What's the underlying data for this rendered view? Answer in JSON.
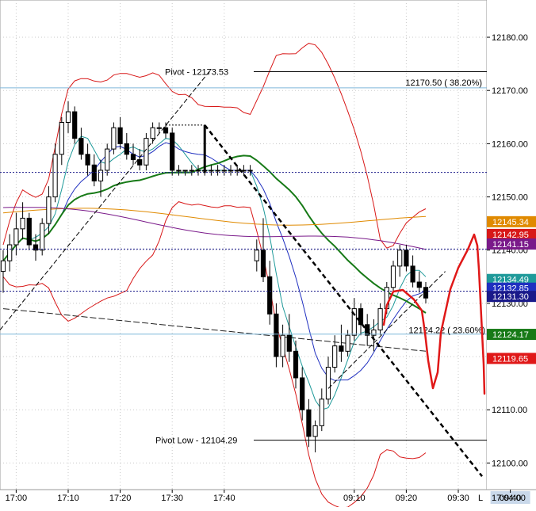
{
  "chart_data": {
    "type": "candlestick",
    "ylim": [
      12095,
      12187
    ],
    "y_ticks": [
      12100,
      12110,
      12120,
      12130,
      12140,
      12150,
      12160,
      12170,
      12180
    ],
    "y_tick_labels": [
      "12100.00",
      "12110.00",
      "12120.00",
      "12130.00",
      "12140.00",
      "12150.00",
      "12160.00",
      "12170.00",
      "12180.00"
    ],
    "x_tick_labels": [
      "17:00",
      "17:10",
      "17:20",
      "17:30",
      "17:40",
      "09:10",
      "09:20",
      "09:30",
      "09:40"
    ],
    "x_tick_bars": [
      2,
      10,
      18,
      26,
      34,
      54,
      62,
      70,
      78
    ],
    "x_end_label": "17:04:00",
    "x_end_marker": "L",
    "highlight_x_label": "09:40",
    "annotations": {
      "pivot_high": {
        "label": "Pivot - 12173.53",
        "value": 12173.53
      },
      "pivot_low": {
        "label": "Pivot Low - 12104.29",
        "value": 12104.29
      },
      "fib_382": {
        "label": "12170.50 ( 38.20%)",
        "value": 12170.5
      },
      "fib_236": {
        "label": "12124.22 ( 23.60%)",
        "value": 12124.22
      }
    },
    "price_badges": [
      {
        "label": "12145.34",
        "value": 12145.34,
        "color": "#e08a00"
      },
      {
        "label": "12142.95",
        "value": 12142.95,
        "color": "#d81818"
      },
      {
        "label": "12141.15",
        "value": 12141.15,
        "color": "#7a1a8a"
      },
      {
        "label": "12134.49",
        "value": 12134.49,
        "color": "#1f9a9a"
      },
      {
        "label": "12132.85",
        "value": 12132.85,
        "color": "#2030c0"
      },
      {
        "label": "12131.30",
        "value": 12131.3,
        "color": "#1a1a8a"
      },
      {
        "label": "12124.17",
        "value": 12124.17,
        "color": "#177a17"
      },
      {
        "label": "12119.65",
        "value": 12119.65,
        "color": "#e01818"
      }
    ],
    "candles": [
      [
        12136,
        12140,
        12132,
        12138
      ],
      [
        12138,
        12143,
        12136,
        12141
      ],
      [
        12141,
        12147,
        12139,
        12144
      ],
      [
        12144,
        12149,
        12142,
        12146
      ],
      [
        12146,
        12147,
        12140,
        12141
      ],
      [
        12141,
        12143,
        12138,
        12140
      ],
      [
        12140,
        12146,
        12139,
        12145
      ],
      [
        12145,
        12152,
        12143,
        12150
      ],
      [
        12150,
        12160,
        12149,
        12158
      ],
      [
        12158,
        12165,
        12156,
        12164
      ],
      [
        12164,
        12168,
        12162,
        12166
      ],
      [
        12166,
        12167,
        12160,
        12161
      ],
      [
        12161,
        12163,
        12157,
        12158
      ],
      [
        12158,
        12160,
        12154,
        12156
      ],
      [
        12156,
        12158,
        12152,
        12153
      ],
      [
        12153,
        12157,
        12150,
        12155
      ],
      [
        12155,
        12160,
        12154,
        12159
      ],
      [
        12159,
        12164,
        12158,
        12163
      ],
      [
        12163,
        12165,
        12159,
        12160
      ],
      [
        12160,
        12162,
        12157,
        12158
      ],
      [
        12158,
        12160,
        12156,
        12157
      ],
      [
        12157,
        12159,
        12155,
        12156
      ],
      [
        12156,
        12162,
        12155,
        12161
      ],
      [
        12161,
        12164,
        12160,
        12163
      ],
      [
        12163,
        12164,
        12162,
        12163
      ],
      [
        12163,
        12164,
        12161,
        12162
      ],
      [
        12162,
        12163,
        12154,
        12155
      ],
      [
        12155,
        12156,
        12154,
        12155
      ],
      [
        12155,
        12155,
        12154,
        12155
      ],
      [
        12155,
        12156,
        12154,
        12155
      ],
      [
        12155,
        12156,
        12154,
        12155
      ],
      [
        12155,
        12156,
        12154,
        12155
      ],
      [
        12155,
        12156,
        12154,
        12155
      ],
      [
        12155,
        12156,
        12154,
        12155
      ],
      [
        12155,
        12156,
        12154,
        12155
      ],
      [
        12155,
        12156,
        12154,
        12155
      ],
      [
        12155,
        12156,
        12154,
        12155
      ],
      [
        12155,
        12156,
        12154,
        12155
      ],
      [
        12155,
        12156,
        12154,
        12155
      ],
      [
        12138,
        12142,
        12136,
        12140
      ],
      [
        12140,
        12146,
        12134,
        12135
      ],
      [
        12135,
        12138,
        12126,
        12128
      ],
      [
        12128,
        12130,
        12118,
        12120
      ],
      [
        12120,
        12126,
        12118,
        12124
      ],
      [
        12124,
        12128,
        12119,
        12121
      ],
      [
        12121,
        12123,
        12114,
        12116
      ],
      [
        12116,
        12118,
        12108,
        12110
      ],
      [
        12110,
        12112,
        12103,
        12105
      ],
      [
        12105,
        12108,
        12102,
        12107
      ],
      [
        12107,
        12114,
        12106,
        12112
      ],
      [
        12112,
        12120,
        12111,
        12118
      ],
      [
        12118,
        12124,
        12117,
        12122
      ],
      [
        12122,
        12126,
        12119,
        12121
      ],
      [
        12121,
        12125,
        12120,
        12124
      ],
      [
        12124,
        12131,
        12123,
        12129
      ],
      [
        12129,
        12130,
        12124,
        12126
      ],
      [
        12126,
        12128,
        12122,
        12124
      ],
      [
        12124,
        12127,
        12121,
        12125
      ],
      [
        12125,
        12130,
        12124,
        12129
      ],
      [
        12129,
        12134,
        12128,
        12133
      ],
      [
        12133,
        12138,
        12132,
        12137
      ],
      [
        12137,
        12141,
        12135,
        12140
      ],
      [
        12140,
        12141,
        12136,
        12137
      ],
      [
        12137,
        12139,
        12133,
        12134
      ],
      [
        12134,
        12136,
        12132,
        12133
      ],
      [
        12133,
        12134,
        12130,
        12131
      ]
    ]
  }
}
